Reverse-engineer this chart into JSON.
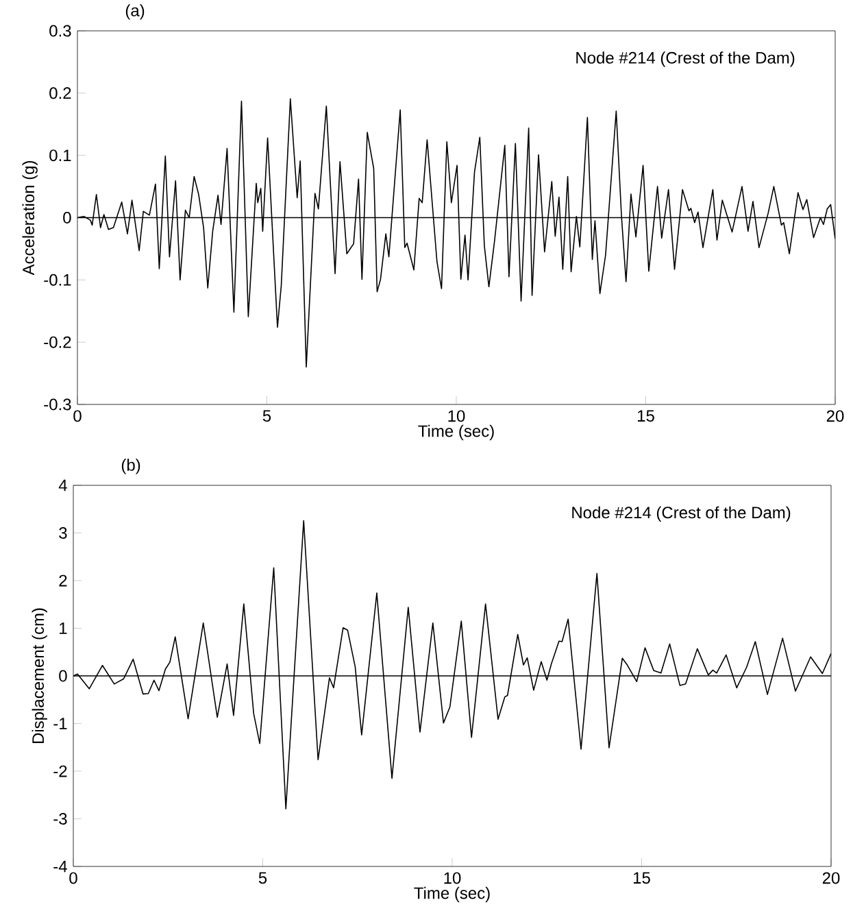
{
  "chart_data": [
    {
      "type": "line",
      "title": "(a)",
      "xlabel": "Time (sec)",
      "ylabel": "Acceleration (g)",
      "annotations": [
        "Node #214 (Crest of the Dam)"
      ],
      "xlim": [
        0,
        20
      ],
      "ylim": [
        -0.3,
        0.3
      ],
      "xticks": [
        0,
        5,
        10,
        15,
        20
      ],
      "yticks": [
        -0.3,
        -0.2,
        -0.1,
        0,
        0.1,
        0.2,
        0.3
      ],
      "ref_lines": [
        {
          "axis": "y",
          "value": 0,
          "color": "#000000"
        }
      ],
      "x": [
        0,
        0.17,
        0.34,
        0.39,
        0.5,
        0.61,
        0.7,
        0.82,
        0.95,
        1.17,
        1.32,
        1.44,
        1.63,
        1.74,
        1.9,
        2.06,
        2.16,
        2.32,
        2.43,
        2.59,
        2.71,
        2.85,
        2.95,
        3.08,
        3.2,
        3.33,
        3.44,
        3.57,
        3.71,
        3.79,
        3.95,
        4.13,
        4.33,
        4.51,
        4.72,
        4.76,
        4.84,
        4.89,
        5.02,
        5.28,
        5.38,
        5.62,
        5.8,
        5.88,
        6.04,
        6.27,
        6.36,
        6.57,
        6.8,
        6.93,
        7.11,
        7.29,
        7.42,
        7.51,
        7.65,
        7.82,
        7.91,
        8.0,
        8.14,
        8.22,
        8.52,
        8.64,
        8.7,
        8.88,
        9.02,
        9.1,
        9.23,
        9.49,
        9.61,
        9.75,
        9.87,
        10.02,
        10.12,
        10.23,
        10.31,
        10.48,
        10.62,
        10.74,
        10.86,
        11.01,
        11.28,
        11.39,
        11.56,
        11.71,
        11.91,
        12.0,
        12.17,
        12.33,
        12.52,
        12.61,
        12.71,
        12.81,
        12.94,
        13.03,
        13.17,
        13.26,
        13.46,
        13.59,
        13.66,
        13.79,
        13.94,
        14.22,
        14.36,
        14.48,
        14.61,
        14.74,
        14.93,
        15.08,
        15.31,
        15.42,
        15.6,
        15.76,
        15.97,
        16.14,
        16.19,
        16.29,
        16.38,
        16.51,
        16.77,
        16.88,
        17.02,
        17.28,
        17.54,
        17.7,
        17.83,
        17.99,
        18.23,
        18.38,
        18.58,
        18.64,
        18.79,
        19.02,
        19.15,
        19.25,
        19.43,
        19.61,
        19.69,
        19.79,
        19.88,
        20.0
      ],
      "series": [
        {
          "color": "#000000",
          "values": [
            0,
            0.002,
            -0.004,
            -0.012,
            0.037,
            -0.016,
            0.005,
            -0.019,
            -0.016,
            0.025,
            -0.026,
            0.028,
            -0.053,
            0.01,
            0.004,
            0.054,
            -0.082,
            0.099,
            -0.063,
            0.059,
            -0.1,
            0.012,
            0,
            0.066,
            0.037,
            -0.016,
            -0.113,
            -0.022,
            0.036,
            -0.011,
            0.111,
            -0.152,
            0.187,
            -0.159,
            0.055,
            0.024,
            0.047,
            -0.022,
            0.128,
            -0.176,
            -0.109,
            0.191,
            0.032,
            0.091,
            -0.24,
            0.039,
            0.014,
            0.179,
            -0.09,
            0.09,
            -0.058,
            -0.042,
            0.062,
            -0.099,
            0.137,
            0.079,
            -0.119,
            -0.099,
            -0.026,
            -0.063,
            0.173,
            -0.048,
            -0.041,
            -0.084,
            0.031,
            0.024,
            0.125,
            -0.071,
            -0.114,
            0.122,
            0.024,
            0.084,
            -0.099,
            -0.028,
            -0.1,
            0.073,
            0.129,
            -0.045,
            -0.111,
            -0.037,
            0.116,
            -0.095,
            0.119,
            -0.134,
            0.144,
            -0.125,
            0.101,
            -0.055,
            0.058,
            -0.03,
            0.033,
            -0.083,
            0.066,
            -0.087,
            0.002,
            -0.047,
            0.161,
            -0.067,
            -0.005,
            -0.122,
            -0.06,
            0.171,
            0.002,
            -0.103,
            0.038,
            -0.031,
            0.084,
            -0.086,
            0.05,
            -0.033,
            0.045,
            -0.083,
            0.045,
            0.011,
            0.015,
            -0.008,
            0.009,
            -0.048,
            0.045,
            -0.036,
            0.028,
            -0.023,
            0.05,
            -0.022,
            0.026,
            -0.048,
            0.007,
            0.05,
            -0.012,
            -0.008,
            -0.058,
            0.04,
            0.013,
            0.029,
            -0.032,
            0,
            -0.011,
            0.014,
            0.021,
            -0.034
          ]
        }
      ]
    },
    {
      "type": "line",
      "title": "(b)",
      "xlabel": "Time (sec)",
      "ylabel": "Displacement (cm)",
      "annotations": [
        "Node #214 (Crest of the Dam)"
      ],
      "xlim": [
        0,
        20
      ],
      "ylim": [
        -4,
        4
      ],
      "xticks": [
        0,
        5,
        10,
        15,
        20
      ],
      "yticks": [
        -4,
        -3,
        -2,
        -1,
        0,
        1,
        2,
        3,
        4
      ],
      "ref_lines": [
        {
          "axis": "y",
          "value": 0,
          "color": "#000000"
        }
      ],
      "x": [
        0,
        0.11,
        0.42,
        0.77,
        1.08,
        1.33,
        1.58,
        1.84,
        1.98,
        2.13,
        2.26,
        2.43,
        2.55,
        2.69,
        3.03,
        3.43,
        3.8,
        4.06,
        4.23,
        4.5,
        4.76,
        4.92,
        5.29,
        5.61,
        6.08,
        6.46,
        6.76,
        6.87,
        7.12,
        7.24,
        7.44,
        7.61,
        8.01,
        8.41,
        8.84,
        9.15,
        9.49,
        9.77,
        9.94,
        10.24,
        10.51,
        10.88,
        11.21,
        11.39,
        11.46,
        11.73,
        11.88,
        11.98,
        12.15,
        12.35,
        12.5,
        12.62,
        12.82,
        12.9,
        13.06,
        13.4,
        13.82,
        14.14,
        14.49,
        14.62,
        14.87,
        15.09,
        15.32,
        15.51,
        15.74,
        16.01,
        16.16,
        16.47,
        16.76,
        16.88,
        16.98,
        17.23,
        17.51,
        17.77,
        18.0,
        18.32,
        18.72,
        19.06,
        19.46,
        19.77,
        20.0
      ],
      "series": [
        {
          "color": "#000000",
          "values": [
            0,
            0.04,
            -0.27,
            0.22,
            -0.17,
            -0.06,
            0.35,
            -0.38,
            -0.37,
            -0.09,
            -0.31,
            0.14,
            0.29,
            0.82,
            -0.9,
            1.11,
            -0.87,
            0.25,
            -0.83,
            1.51,
            -0.79,
            -1.42,
            2.27,
            -2.79,
            3.26,
            -1.76,
            -0.04,
            -0.25,
            1.01,
            0.96,
            0.19,
            -1.24,
            1.74,
            -2.15,
            1.44,
            -1.18,
            1.11,
            -0.99,
            -0.65,
            1.15,
            -1.29,
            1.51,
            -0.91,
            -0.44,
            -0.41,
            0.87,
            0.23,
            0.38,
            -0.3,
            0.3,
            -0.09,
            0.26,
            0.73,
            0.72,
            1.19,
            -1.54,
            2.15,
            -1.51,
            0.37,
            0.23,
            -0.12,
            0.59,
            0.11,
            0.06,
            0.67,
            -0.2,
            -0.17,
            0.57,
            0.02,
            0.12,
            0.06,
            0.44,
            -0.25,
            0.18,
            0.72,
            -0.39,
            0.79,
            -0.32,
            0.4,
            0.05,
            0.47
          ]
        }
      ]
    }
  ]
}
